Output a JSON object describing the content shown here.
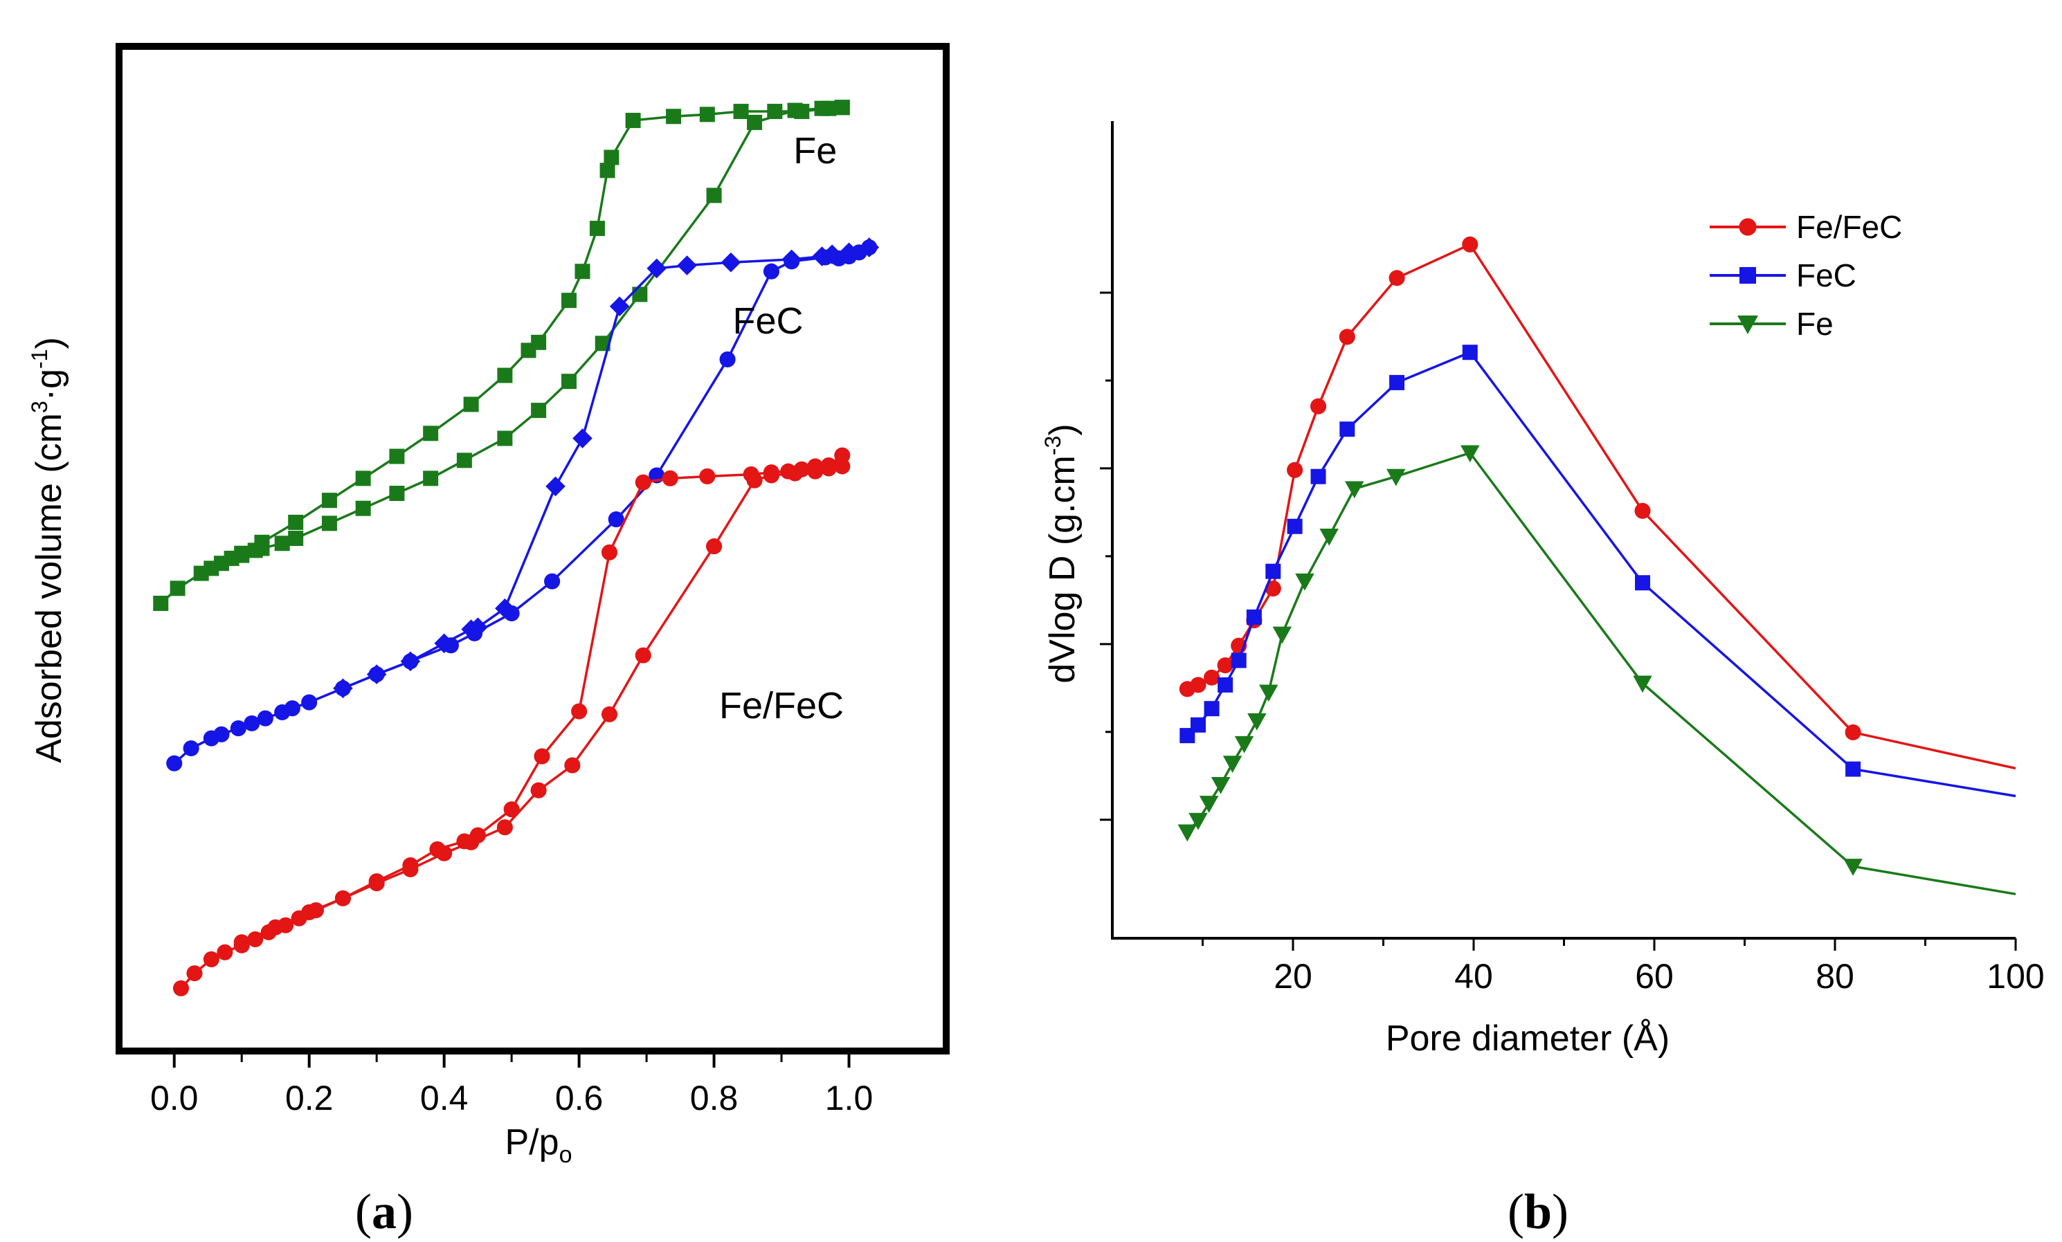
{
  "chart_data": [
    {
      "type": "line",
      "panel_label_open": "(",
      "panel_label_letter": "a",
      "panel_label_close": ")",
      "ylabel": "Adsorbed volume (cm",
      "ylabel_sup1": "3",
      "ylabel_mid": "·g",
      "ylabel_sup2": "-1",
      "ylabel_end": ")",
      "xlabel": "P/p",
      "xlabel_sub": "o",
      "xlim": [
        -0.05,
        1.1
      ],
      "ylim": [
        0,
        100
      ],
      "y_ticks_visible": false,
      "x_ticks": [
        0.0,
        0.2,
        0.4,
        0.6,
        0.8,
        1.0
      ],
      "x_tick_labels": [
        "0.0",
        "0.2",
        "0.4",
        "0.6",
        "0.8",
        "1.0"
      ],
      "series": [
        {
          "name": "Fe",
          "color": "#1a7a1a",
          "marker": "square",
          "adsorption": {
            "x": [
              -0.02,
              0.005,
              0.04,
              0.055,
              0.07,
              0.085,
              0.1,
              0.12,
              0.13,
              0.16,
              0.18,
              0.23,
              0.28,
              0.33,
              0.38,
              0.43,
              0.49,
              0.54,
              0.585,
              0.635,
              0.69,
              0.8,
              0.86,
              0.92,
              0.96,
              0.99
            ],
            "y": [
              44.5,
              46.0,
              47.5,
              48.0,
              48.5,
              49.0,
              49.3,
              49.8,
              50.0,
              50.5,
              51.0,
              52.5,
              54.0,
              55.5,
              57.0,
              58.8,
              61.0,
              63.8,
              66.7,
              70.5,
              75.4,
              85.3,
              92.6,
              93.8,
              94.0,
              94.1
            ]
          },
          "desorption": {
            "x": [
              0.99,
              0.97,
              0.93,
              0.89,
              0.84,
              0.79,
              0.74,
              0.68,
              0.648,
              0.642,
              0.627,
              0.605,
              0.585,
              0.54,
              0.525,
              0.49,
              0.44,
              0.38,
              0.33,
              0.28,
              0.23,
              0.18,
              0.13,
              0.1
            ],
            "y": [
              94.1,
              94.0,
              93.7,
              93.7,
              93.7,
              93.4,
              93.2,
              92.8,
              89.1,
              87.8,
              82.0,
              77.7,
              74.8,
              70.6,
              69.8,
              67.3,
              64.4,
              61.5,
              59.2,
              57.0,
              54.8,
              52.6,
              50.6,
              49.5
            ]
          },
          "label_x": 0.95,
          "label_y": 88.5
        },
        {
          "name": "FeC",
          "color": "#1515e6",
          "marker": "circle",
          "adsorption": {
            "x": [
              0.0,
              0.025,
              0.055,
              0.07,
              0.095,
              0.115,
              0.135,
              0.16,
              0.175,
              0.2,
              0.25,
              0.3,
              0.35,
              0.41,
              0.445,
              0.5,
              0.56,
              0.655,
              0.715,
              0.82,
              0.885,
              0.915,
              0.965,
              0.985,
              1.0,
              1.015,
              1.03
            ],
            "y": [
              28.5,
              30.0,
              31.0,
              31.4,
              32.0,
              32.5,
              33.0,
              33.6,
              34.0,
              34.6,
              36.0,
              37.4,
              38.7,
              40.3,
              41.5,
              43.5,
              46.7,
              52.9,
              57.3,
              68.9,
              77.7,
              78.7,
              79.1,
              79.0,
              79.2,
              79.6,
              80.1
            ]
          },
          "desorption": {
            "x": [
              1.03,
              1.0,
              0.975,
              0.96,
              0.915,
              0.825,
              0.76,
              0.715,
              0.66,
              0.605,
              0.565,
              0.49,
              0.45,
              0.44,
              0.4,
              0.35,
              0.3,
              0.25
            ],
            "y": [
              80.1,
              79.6,
              79.4,
              79.2,
              78.9,
              78.6,
              78.3,
              78.0,
              74.2,
              61.0,
              56.2,
              44.0,
              42.1,
              41.9,
              40.5,
              38.7,
              37.4,
              36.0
            ]
          },
          "label_x": 0.88,
          "label_y": 71.5
        },
        {
          "name": "Fe/FeC",
          "color": "#e31515",
          "marker": "circle",
          "adsorption": {
            "x": [
              0.01,
              0.03,
              0.055,
              0.075,
              0.1,
              0.12,
              0.14,
              0.165,
              0.185,
              0.21,
              0.25,
              0.3,
              0.35,
              0.4,
              0.44,
              0.49,
              0.54,
              0.59,
              0.645,
              0.695,
              0.8,
              0.86,
              0.885,
              0.92,
              0.95,
              0.97,
              0.99
            ],
            "y": [
              6.0,
              7.5,
              8.9,
              9.6,
              10.3,
              10.9,
              11.6,
              12.3,
              13.0,
              13.8,
              15.0,
              16.5,
              17.9,
              19.5,
              20.6,
              22.1,
              25.8,
              28.3,
              33.4,
              39.3,
              50.2,
              56.8,
              57.3,
              57.5,
              57.7,
              58.0,
              58.2
            ]
          },
          "desorption": {
            "x": [
              0.99,
              0.97,
              0.95,
              0.93,
              0.91,
              0.885,
              0.855,
              0.79,
              0.735,
              0.695,
              0.645,
              0.6,
              0.545,
              0.5,
              0.45,
              0.43,
              0.39,
              0.35,
              0.3,
              0.25,
              0.2,
              0.15,
              0.1
            ],
            "y": [
              59.3,
              58.3,
              58.2,
              57.9,
              57.7,
              57.6,
              57.4,
              57.2,
              57.0,
              56.6,
              49.6,
              33.7,
              29.2,
              23.9,
              21.3,
              20.7,
              19.9,
              18.3,
              16.7,
              15.0,
              13.6,
              12.1,
              10.6
            ]
          },
          "label_x": 0.9,
          "label_y": 33.0
        }
      ]
    },
    {
      "type": "line",
      "panel_label_open": "(",
      "panel_label_letter": "b",
      "panel_label_close": ")",
      "ylabel": "dVlog D (g.cm",
      "ylabel_sup": "-3",
      "ylabel_end": ")",
      "xlabel": "Pore diameter (Å)",
      "xlim": [
        0,
        100
      ],
      "ylim": [
        0,
        100
      ],
      "x_ticks": [
        20,
        40,
        60,
        80,
        100
      ],
      "x_tick_labels": [
        "20",
        "40",
        "60",
        "80",
        "100"
      ],
      "x_minor_ticks": [
        10,
        30,
        50,
        70,
        90
      ],
      "y_ticks": [
        14.5,
        36.0,
        57.5,
        79.0
      ],
      "y_ticks_labeled": false,
      "legend": {
        "position": "top-right"
      },
      "series": [
        {
          "name": "Fe/FeC",
          "color": "#e31515",
          "marker": "circle",
          "x": [
            8.3,
            9.5,
            11.0,
            12.5,
            14.0,
            15.7,
            17.8,
            20.2,
            22.8,
            26.0,
            31.5,
            39.6,
            58.7,
            82.0,
            100
          ],
          "y": [
            30.5,
            31.0,
            31.9,
            33.4,
            35.8,
            38.9,
            42.8,
            57.3,
            65.1,
            73.6,
            80.8,
            84.9,
            52.3,
            25.2,
            20.8
          ]
        },
        {
          "name": "FeC",
          "color": "#1515e6",
          "marker": "square",
          "x": [
            8.3,
            9.5,
            11.0,
            12.5,
            14.0,
            15.7,
            17.8,
            20.2,
            22.8,
            26.0,
            31.5,
            39.6,
            58.7,
            82.0,
            100
          ],
          "y": [
            24.8,
            26.1,
            28.1,
            31.0,
            34.0,
            39.3,
            44.9,
            50.4,
            56.5,
            62.3,
            68.0,
            71.7,
            43.5,
            20.7,
            17.4
          ]
        },
        {
          "name": "Fe",
          "color": "#1a7a1a",
          "marker": "triangle-down",
          "x": [
            8.3,
            9.5,
            10.7,
            12.0,
            13.3,
            14.6,
            16.0,
            17.3,
            18.8,
            21.3,
            24.0,
            26.8,
            31.4,
            39.6,
            58.7,
            82.0,
            100
          ],
          "y": [
            13.0,
            14.4,
            16.5,
            18.8,
            21.4,
            23.8,
            26.6,
            30.1,
            37.2,
            43.7,
            49.2,
            55.0,
            56.5,
            59.4,
            31.2,
            8.8,
            5.4
          ]
        }
      ]
    }
  ]
}
